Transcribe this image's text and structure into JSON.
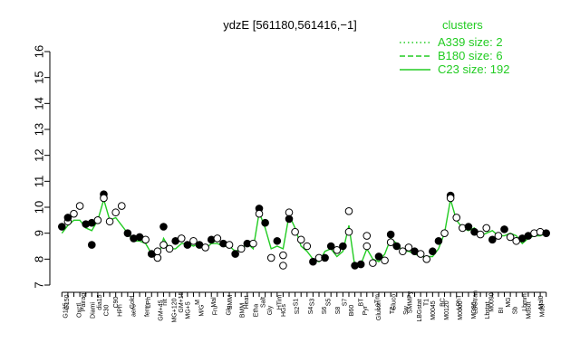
{
  "chart_data": {
    "type": "line",
    "title": "ydzE [561180,561416,−1]",
    "xlabel": "",
    "ylabel": "",
    "ylim": [
      7,
      16
    ],
    "yticks": [
      7,
      8,
      9,
      10,
      11,
      12,
      13,
      14,
      15,
      16
    ],
    "grid": false,
    "legend": {
      "title": "clusters",
      "placement": "top-right",
      "entries": [
        {
          "label": "A339 size: 2",
          "style": "dotted"
        },
        {
          "label": "B180 size: 6",
          "style": "dashed"
        },
        {
          "label": "C23 size: 192",
          "style": "solid"
        }
      ]
    },
    "colors": {
      "series": "#22cc22",
      "points": "#000000",
      "axis": "#000000"
    },
    "tick_labels": [
      "G150",
      "G135",
      "G180",
      "Pairaq",
      "LBGexp",
      "Oxctl",
      "dia15",
      "Diami",
      "dia5",
      "C90",
      "C30",
      "Cold",
      "HPh",
      "LPh",
      "aero",
      "nit",
      "ferm",
      "GM+15",
      "GM+45",
      "GM+90",
      "MG+120",
      "MG+15",
      "MG+25",
      "MG+45",
      "MG+5",
      "MG+60",
      "MG+90",
      "M",
      "M/G",
      "Mal",
      "Fru",
      "SMM",
      "Glu",
      "BMM",
      "Heat",
      "Etha",
      "Salt",
      "Gly",
      "HTim",
      "HGs",
      "S1",
      "S2",
      "S3",
      "S4",
      "S5",
      "S6",
      "S7",
      "S8",
      "S9",
      "BT",
      "B60",
      "LoTm",
      "Pyr",
      "Gluco",
      "Glucon",
      "SMMPy",
      "T1",
      "T2",
      "T3",
      "T4",
      "T5",
      "T6",
      "T7",
      "T8",
      "BC",
      "Sw",
      "LPhT",
      "LBGstat",
      "LBGtran",
      "M0045",
      "M0090",
      "M0120",
      "MG",
      "M0000",
      "MG90",
      "Lbmm",
      "Lbstat",
      "BI",
      "Sb",
      "Mdsdt",
      "Mal0",
      "Mdsl"
    ],
    "x_label_rows": [
      [
        "G150",
        "Pairaq",
        "dia15",
        "C90",
        "Cold",
        "LPh",
        "nit",
        "GM+15",
        "M",
        "Mal",
        "SMM",
        "Heat",
        "Salt",
        "HTim",
        "S1",
        "S3",
        "S5",
        "S7",
        "BT",
        "LoTm",
        "Gluco",
        "SMMPy",
        "T1",
        "BC",
        "LPhT",
        "LBGtran",
        "M0090",
        "MG",
        "Lbmm",
        "Mal0"
      ],
      [
        "G135",
        "Oxctl",
        "Diami",
        "C30",
        "HPh",
        "aero",
        "ferm",
        "GM+45",
        "MG+120",
        "MG+5",
        "M/G",
        "Fru",
        "Glu",
        "BMM",
        "Etha",
        "Gly",
        "HGs",
        "S2",
        "S4",
        "S6",
        "S8",
        "B60",
        "Pyr",
        "Glucon",
        "T2",
        "Sw",
        "LBGstat",
        "M0045",
        "M0120",
        "M0000",
        "MG90",
        "Lbstat",
        "BI",
        "Sb",
        "Mdsdt",
        "Mdsl"
      ]
    ],
    "series": [
      {
        "name": "C23 size: 192",
        "values": [
          9.0,
          9.3,
          9.5,
          9.5,
          9.2,
          9.1,
          9.5,
          10.3,
          9.5,
          9.6,
          9.3,
          9.0,
          8.7,
          8.7,
          8.6,
          8.2,
          8.0,
          8.8,
          8.4,
          8.4,
          8.6,
          8.6,
          8.5,
          8.6,
          8.4,
          8.6,
          8.6,
          8.5,
          8.5,
          8.3,
          8.4,
          8.6,
          8.4,
          9.8,
          9.2,
          8.4,
          8.5,
          8.4,
          9.7,
          9.2,
          8.5,
          8.3,
          8.0,
          7.9,
          8.3,
          8.4,
          8.1,
          8.3,
          9.3,
          7.7,
          7.8,
          8.4,
          8.0,
          7.9,
          8.2,
          8.8,
          8.6,
          8.3,
          8.3,
          8.2,
          8.1,
          8.1,
          8.1,
          8.4,
          9.0,
          10.3,
          9.5,
          9.2,
          9.1,
          9.2,
          8.9,
          9.0,
          9.1,
          8.9,
          8.9,
          9.0,
          8.9,
          8.6,
          8.8,
          8.9,
          8.9,
          9.0
        ]
      }
    ],
    "points": [
      {
        "x": 0,
        "y": 9.25,
        "filled": true
      },
      {
        "x": 1,
        "y": 9.45,
        "filled": false
      },
      {
        "x": 1,
        "y": 9.6,
        "filled": true
      },
      {
        "x": 2,
        "y": 9.75,
        "filled": false
      },
      {
        "x": 3,
        "y": 10.05,
        "filled": false
      },
      {
        "x": 4,
        "y": 9.35,
        "filled": true
      },
      {
        "x": 5,
        "y": 9.4,
        "filled": true
      },
      {
        "x": 5,
        "y": 8.55,
        "filled": true
      },
      {
        "x": 6,
        "y": 9.5,
        "filled": false
      },
      {
        "x": 7,
        "y": 10.5,
        "filled": true
      },
      {
        "x": 7,
        "y": 10.35,
        "filled": false
      },
      {
        "x": 8,
        "y": 9.45,
        "filled": false
      },
      {
        "x": 9,
        "y": 9.8,
        "filled": false
      },
      {
        "x": 10,
        "y": 10.05,
        "filled": false
      },
      {
        "x": 11,
        "y": 9.0,
        "filled": true
      },
      {
        "x": 12,
        "y": 8.8,
        "filled": true
      },
      {
        "x": 13,
        "y": 8.85,
        "filled": true
      },
      {
        "x": 14,
        "y": 8.75,
        "filled": false
      },
      {
        "x": 15,
        "y": 8.2,
        "filled": true
      },
      {
        "x": 16,
        "y": 8.05,
        "filled": false
      },
      {
        "x": 16,
        "y": 8.3,
        "filled": false
      },
      {
        "x": 17,
        "y": 9.25,
        "filled": true
      },
      {
        "x": 17,
        "y": 8.55,
        "filled": false
      },
      {
        "x": 18,
        "y": 8.4,
        "filled": false
      },
      {
        "x": 19,
        "y": 8.7,
        "filled": true
      },
      {
        "x": 20,
        "y": 8.8,
        "filled": false
      },
      {
        "x": 21,
        "y": 8.55,
        "filled": true
      },
      {
        "x": 22,
        "y": 8.7,
        "filled": false
      },
      {
        "x": 23,
        "y": 8.55,
        "filled": true
      },
      {
        "x": 24,
        "y": 8.45,
        "filled": false
      },
      {
        "x": 25,
        "y": 8.75,
        "filled": true
      },
      {
        "x": 26,
        "y": 8.8,
        "filled": false
      },
      {
        "x": 27,
        "y": 8.6,
        "filled": true
      },
      {
        "x": 28,
        "y": 8.55,
        "filled": false
      },
      {
        "x": 29,
        "y": 8.2,
        "filled": true
      },
      {
        "x": 30,
        "y": 8.4,
        "filled": false
      },
      {
        "x": 31,
        "y": 8.6,
        "filled": true
      },
      {
        "x": 32,
        "y": 8.6,
        "filled": false
      },
      {
        "x": 33,
        "y": 9.95,
        "filled": true
      },
      {
        "x": 33,
        "y": 9.75,
        "filled": false
      },
      {
        "x": 34,
        "y": 9.4,
        "filled": true
      },
      {
        "x": 35,
        "y": 8.05,
        "filled": false
      },
      {
        "x": 36,
        "y": 8.7,
        "filled": true
      },
      {
        "x": 37,
        "y": 8.15,
        "filled": false
      },
      {
        "x": 37,
        "y": 7.75,
        "filled": false
      },
      {
        "x": 38,
        "y": 9.8,
        "filled": false
      },
      {
        "x": 38,
        "y": 9.55,
        "filled": true
      },
      {
        "x": 39,
        "y": 9.05,
        "filled": false
      },
      {
        "x": 40,
        "y": 8.75,
        "filled": false
      },
      {
        "x": 41,
        "y": 8.5,
        "filled": false
      },
      {
        "x": 42,
        "y": 7.9,
        "filled": true
      },
      {
        "x": 43,
        "y": 8.05,
        "filled": false
      },
      {
        "x": 44,
        "y": 8.05,
        "filled": true
      },
      {
        "x": 45,
        "y": 8.5,
        "filled": true
      },
      {
        "x": 46,
        "y": 8.35,
        "filled": false
      },
      {
        "x": 47,
        "y": 8.5,
        "filled": true
      },
      {
        "x": 48,
        "y": 9.85,
        "filled": false
      },
      {
        "x": 48,
        "y": 9.05,
        "filled": false
      },
      {
        "x": 49,
        "y": 7.75,
        "filled": true
      },
      {
        "x": 50,
        "y": 7.8,
        "filled": true
      },
      {
        "x": 51,
        "y": 8.9,
        "filled": false
      },
      {
        "x": 51,
        "y": 8.5,
        "filled": false
      },
      {
        "x": 52,
        "y": 7.85,
        "filled": false
      },
      {
        "x": 53,
        "y": 8.1,
        "filled": true
      },
      {
        "x": 54,
        "y": 7.95,
        "filled": false
      },
      {
        "x": 55,
        "y": 8.95,
        "filled": true
      },
      {
        "x": 55,
        "y": 8.65,
        "filled": false
      },
      {
        "x": 56,
        "y": 8.5,
        "filled": true
      },
      {
        "x": 57,
        "y": 8.3,
        "filled": false
      },
      {
        "x": 58,
        "y": 8.45,
        "filled": false
      },
      {
        "x": 59,
        "y": 8.3,
        "filled": true
      },
      {
        "x": 60,
        "y": 8.2,
        "filled": false
      },
      {
        "x": 61,
        "y": 8.0,
        "filled": false
      },
      {
        "x": 62,
        "y": 8.3,
        "filled": true
      },
      {
        "x": 63,
        "y": 8.7,
        "filled": true
      },
      {
        "x": 64,
        "y": 9.0,
        "filled": false
      },
      {
        "x": 65,
        "y": 10.45,
        "filled": true
      },
      {
        "x": 65,
        "y": 10.35,
        "filled": false
      },
      {
        "x": 66,
        "y": 9.6,
        "filled": false
      },
      {
        "x": 67,
        "y": 9.2,
        "filled": false
      },
      {
        "x": 68,
        "y": 9.25,
        "filled": true
      },
      {
        "x": 69,
        "y": 9.05,
        "filled": true
      },
      {
        "x": 70,
        "y": 8.95,
        "filled": false
      },
      {
        "x": 71,
        "y": 9.2,
        "filled": false
      },
      {
        "x": 72,
        "y": 8.75,
        "filled": true
      },
      {
        "x": 73,
        "y": 8.9,
        "filled": false
      },
      {
        "x": 74,
        "y": 9.15,
        "filled": true
      },
      {
        "x": 75,
        "y": 8.85,
        "filled": false
      },
      {
        "x": 76,
        "y": 8.7,
        "filled": false
      },
      {
        "x": 77,
        "y": 8.8,
        "filled": true
      },
      {
        "x": 78,
        "y": 8.9,
        "filled": true
      },
      {
        "x": 79,
        "y": 9.0,
        "filled": false
      },
      {
        "x": 80,
        "y": 9.05,
        "filled": false
      },
      {
        "x": 81,
        "y": 9.0,
        "filled": true
      }
    ]
  }
}
